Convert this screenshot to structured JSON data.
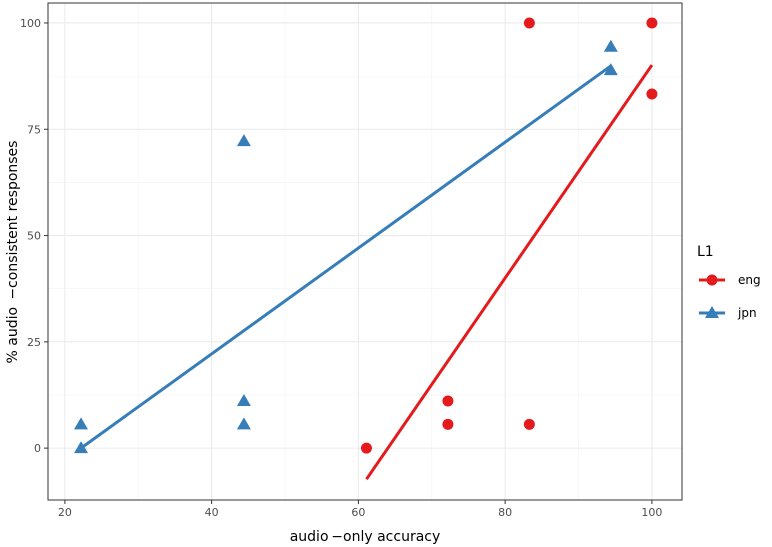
{
  "chart_data": {
    "type": "scatter",
    "xlabel": "audio −only accuracy",
    "ylabel": "% audio  −consistent responses",
    "xlim": [
      17.7,
      104.1
    ],
    "ylim": [
      -12.2,
      104.7
    ],
    "xticks": [
      20,
      40,
      60,
      80,
      100
    ],
    "yticks": [
      0,
      25,
      50,
      75,
      100
    ],
    "grid": true,
    "legend": {
      "title": "L1",
      "position": "right"
    },
    "series": [
      {
        "name": "eng",
        "color": "#e41a1c",
        "marker": "circle",
        "points": [
          [
            61.1,
            0
          ],
          [
            72.2,
            11.1
          ],
          [
            72.2,
            5.6
          ],
          [
            83.3,
            100
          ],
          [
            83.3,
            5.6
          ],
          [
            100,
            100
          ],
          [
            100,
            83.3
          ]
        ],
        "fit": [
          [
            61.1,
            -7.3
          ],
          [
            100,
            90.1
          ]
        ]
      },
      {
        "name": "jpn",
        "color": "#377eb8",
        "marker": "triangle",
        "points": [
          [
            22.2,
            5.6
          ],
          [
            22.2,
            0
          ],
          [
            44.4,
            72.2
          ],
          [
            44.4,
            11.1
          ],
          [
            44.4,
            5.6
          ],
          [
            94.4,
            94.4
          ],
          [
            94.4,
            88.9
          ]
        ],
        "fit": [
          [
            22.2,
            0
          ],
          [
            94.4,
            89.9
          ]
        ]
      }
    ]
  }
}
